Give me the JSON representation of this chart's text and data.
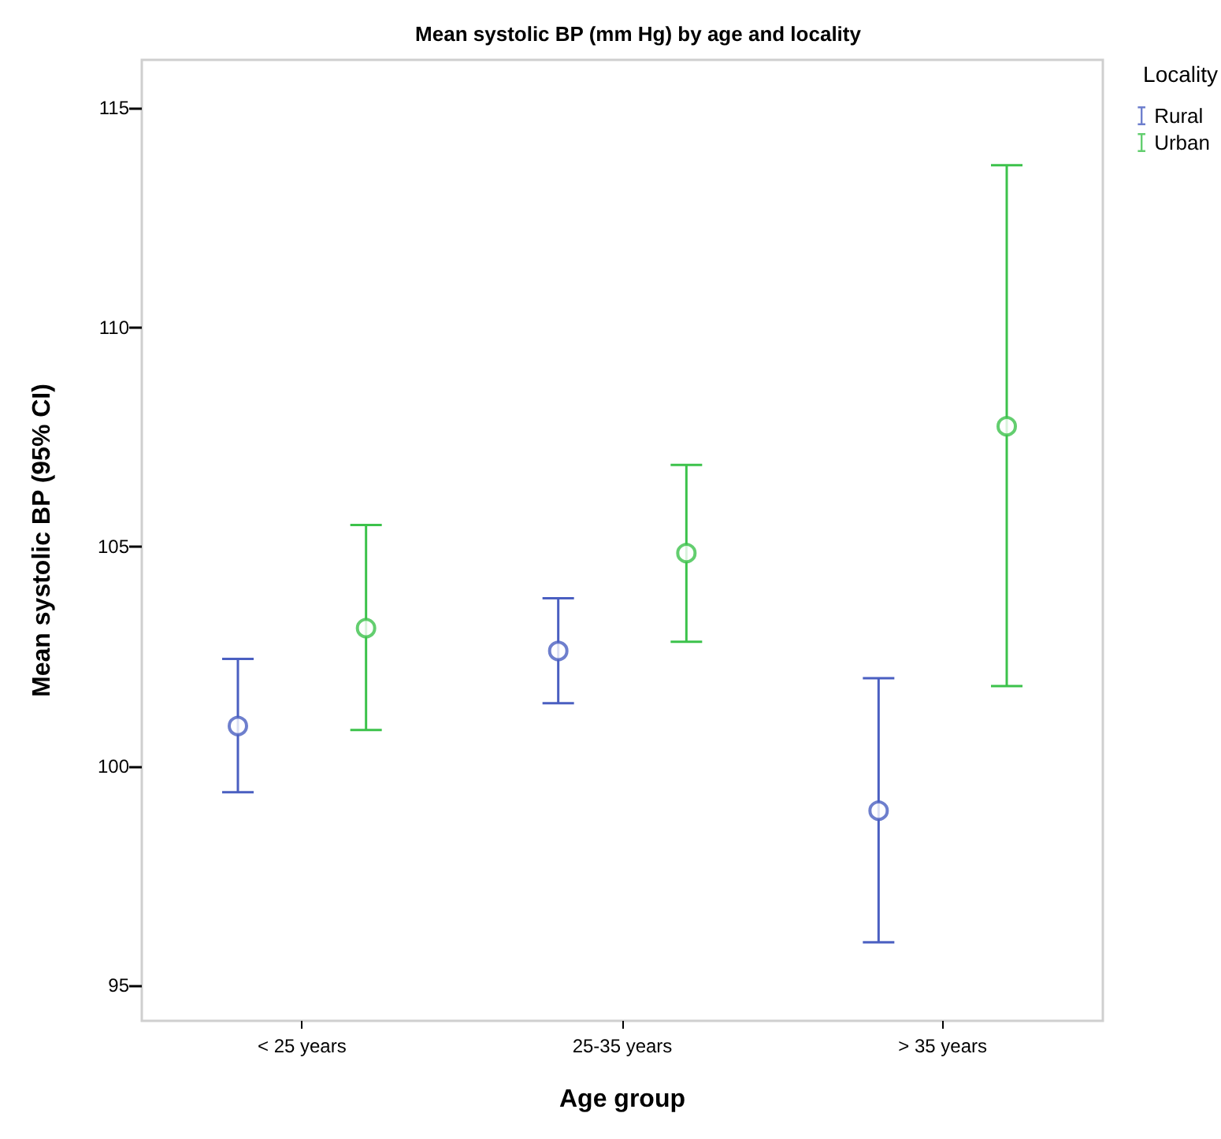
{
  "chart_data": {
    "type": "scatter",
    "title": "Mean systolic BP (mm Hg) by age and locality",
    "xlabel": "Age group",
    "ylabel": "Mean systolic BP (95% CI)",
    "legend_title": "Locality",
    "categories": [
      "< 25 years",
      "25-35 years",
      "> 35 years"
    ],
    "series": [
      {
        "name": "Rural",
        "color": "#4a5fc1",
        "values": [
          100.92,
          102.63,
          98.99
        ],
        "errors": [
          [
            99.41,
            102.45
          ],
          [
            101.44,
            103.83
          ],
          [
            95.99,
            102.01
          ]
        ]
      },
      {
        "name": "Urban",
        "color": "#3cc24b",
        "values": [
          103.15,
          104.86,
          107.75
        ],
        "errors": [
          [
            100.83,
            105.5
          ],
          [
            102.84,
            106.87
          ],
          [
            101.83,
            113.7
          ]
        ]
      }
    ],
    "ylim": [
      94.2,
      116.1
    ],
    "yticks": [
      95,
      100,
      105,
      110,
      115
    ],
    "grid": false,
    "legend": "top right",
    "marker": "circle"
  }
}
